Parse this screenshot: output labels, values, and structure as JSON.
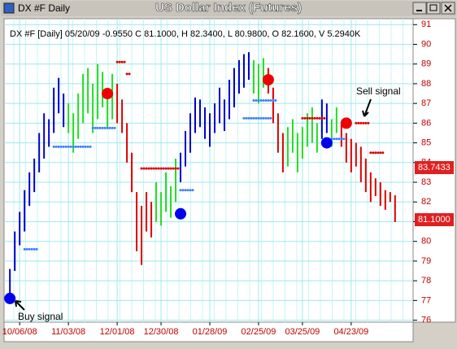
{
  "window": {
    "title": "DX #F Daily"
  },
  "chart_data": {
    "type": "range-bars",
    "title": "US Dollar Index (Futures)",
    "info": "DX #F [Daily] 05/20/09  -0.9550 C 81.1000, H 82.3400, L 80.9800, O 82.1600, V 5.2940K",
    "xlim": [
      -1.2,
      82.7
    ],
    "xticks": [
      {
        "value": 2,
        "label": "10/06/08"
      },
      {
        "value": 12,
        "label": "11/03/08"
      },
      {
        "value": 22,
        "label": "12/01/08"
      },
      {
        "value": 31,
        "label": "12/30/08"
      },
      {
        "value": 41,
        "label": "01/28/09"
      },
      {
        "value": 51,
        "label": "02/25/09"
      },
      {
        "value": 60,
        "label": "03/25/09"
      },
      {
        "value": 70,
        "label": "04/23/09"
      }
    ],
    "ylim": [
      75.9,
      91.3
    ],
    "yticks": [
      76,
      77,
      78,
      79,
      80,
      81,
      82,
      83,
      84,
      85,
      86,
      87,
      88,
      89,
      90,
      91
    ],
    "grid": true,
    "series": [
      {
        "color": "#0000cc",
        "x_start": 0,
        "high": [
          78.6,
          80.5,
          81.5,
          82.6,
          83.5,
          84.2,
          85.5,
          86.5,
          86.2,
          87.8,
          88.3,
          87.5
        ],
        "low": [
          77.2,
          78.5,
          79.8,
          80.5,
          81.8,
          82.5,
          83.5,
          84.2,
          84.8,
          85.5,
          86.5,
          85.8
        ]
      },
      {
        "color": "#22dd22",
        "x_start": 12,
        "high": [
          87.0,
          86.5,
          87.5,
          88.5,
          88.8,
          88.0,
          89.0,
          88.6,
          87.8,
          88.5
        ],
        "low": [
          85.5,
          84.5,
          85.2,
          86.0,
          86.5,
          85.5,
          86.2,
          86.8,
          85.8,
          86.2
        ]
      },
      {
        "color": "#e00000",
        "x_start": 22,
        "high": [
          88.0,
          87.2,
          86.0,
          84.5,
          82.5,
          81.8,
          82.5,
          82.0
        ],
        "low": [
          86.0,
          85.5,
          84.0,
          82.5,
          79.5,
          78.8,
          80.5,
          80.2
        ]
      },
      {
        "color": "#22dd22",
        "x_start": 30,
        "high": [
          83.0,
          82.5,
          83.5,
          82.8,
          84.2
        ],
        "low": [
          81.0,
          80.8,
          81.5,
          81.2,
          82.0
        ]
      },
      {
        "color": "#0000cc",
        "x_start": 35,
        "high": [
          84.5,
          85.6,
          86.5,
          87.3,
          87.2,
          86.8,
          86.5,
          87.0,
          87.8,
          87.2,
          88.2,
          88.8,
          89.2,
          89.5,
          89.6
        ],
        "low": [
          83.0,
          83.8,
          84.5,
          85.5,
          85.8,
          85.2,
          84.8,
          85.5,
          86.0,
          85.6,
          86.2,
          86.8,
          87.5,
          87.8,
          88.2
        ]
      },
      {
        "color": "#22dd22",
        "x_start": 50,
        "high": [
          89.2,
          89.0,
          89.3
        ],
        "low": [
          87.5,
          87.0,
          87.8
        ]
      },
      {
        "color": "#e00000",
        "x_start": 53,
        "high": [
          88.8,
          87.8,
          86.5,
          85.5
        ],
        "low": [
          87.5,
          86.0,
          84.5,
          83.5
        ]
      },
      {
        "color": "#22dd22",
        "x_start": 57,
        "high": [
          85.8,
          86.2,
          85.5,
          85.8,
          86.5,
          86.8,
          86.0
        ],
        "low": [
          83.8,
          84.5,
          83.5,
          84.2,
          84.8,
          85.0,
          84.5
        ]
      },
      {
        "color": "#0000cc",
        "x_start": 64,
        "high": [
          87.2,
          87.0
        ],
        "low": [
          85.2,
          85.5
        ]
      },
      {
        "color": "#22dd22",
        "x_start": 66,
        "high": [
          86.2,
          86.8
        ],
        "low": [
          84.8,
          85.5
        ]
      },
      {
        "color": "#e00000",
        "x_start": 68,
        "high": [
          86.0,
          85.5,
          85.2,
          85.0,
          84.8,
          84.2,
          83.5,
          83.2,
          83.0,
          82.6,
          82.5,
          82.34
        ],
        "low": [
          84.8,
          84.0,
          83.5,
          83.8,
          83.0,
          82.5,
          82.0,
          82.3,
          81.8,
          81.6,
          82.0,
          80.98
        ]
      }
    ],
    "stops": [
      {
        "color": "#3f7fff",
        "level": 79.6,
        "from": 3,
        "to": 6
      },
      {
        "color": "#3f7fff",
        "level": 84.8,
        "from": 9,
        "to": 17
      },
      {
        "color": "#3f7fff",
        "level": 85.75,
        "from": 17,
        "to": 22
      },
      {
        "color": "#e00000",
        "level": 89.1,
        "from": 22,
        "to": 24
      },
      {
        "color": "#e00000",
        "level": 88.5,
        "from": 24,
        "to": 25
      },
      {
        "color": "#e00000",
        "level": 83.7,
        "from": 27,
        "to": 35
      },
      {
        "color": "#3f7fff",
        "level": 82.6,
        "from": 35,
        "to": 38
      },
      {
        "color": "#3f7fff",
        "level": 86.25,
        "from": 48,
        "to": 54
      },
      {
        "color": "#3f7fff",
        "level": 87.15,
        "from": 50,
        "to": 55
      },
      {
        "color": "#e00000",
        "level": 86.25,
        "from": 60,
        "to": 65
      },
      {
        "color": "#3f7fff",
        "level": 85.2,
        "from": 66,
        "to": 69
      },
      {
        "color": "#e00000",
        "level": 86.0,
        "from": 71,
        "to": 74
      },
      {
        "color": "#e00000",
        "level": 84.5,
        "from": 74,
        "to": 77
      }
    ],
    "signals": [
      {
        "color": "#0000ee",
        "x": 0,
        "y": 77.1
      },
      {
        "color": "#ee0000",
        "x": 20,
        "y": 87.5
      },
      {
        "color": "#0000ee",
        "x": 35,
        "y": 81.4
      },
      {
        "color": "#ee0000",
        "x": 53,
        "y": 88.2
      },
      {
        "color": "#0000ee",
        "x": 65,
        "y": 85.0
      },
      {
        "color": "#ee0000",
        "x": 69,
        "y": 86.0
      }
    ],
    "price_labels": [
      {
        "value": 83.7433,
        "label": "83.7433"
      },
      {
        "value": 81.1,
        "label": "81.1000"
      }
    ],
    "annotations": [
      {
        "text": "Buy signal"
      },
      {
        "text": "Sell signal"
      }
    ]
  }
}
